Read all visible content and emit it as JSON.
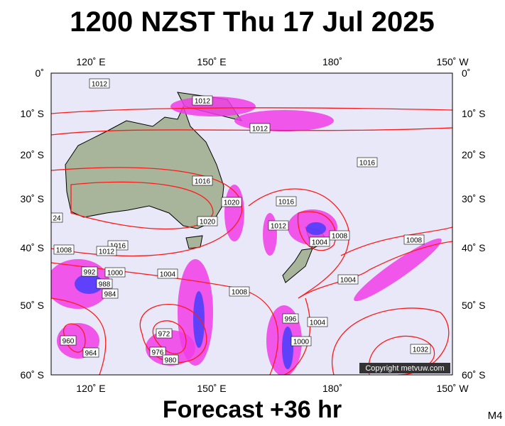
{
  "title": "1200 NZST Thu 17 Jul 2025",
  "longitude_labels": [
    "120˚ E",
    "150˚ E",
    "180˚",
    "150˚ W"
  ],
  "latitude_labels": [
    "0˚",
    "10˚ S",
    "20˚ S",
    "30˚ S",
    "40˚ S",
    "50˚ S",
    "60˚ S"
  ],
  "isobar_labels": [
    "1012",
    "1012",
    "1012",
    "1016",
    "1016",
    "1020",
    "1020",
    "1016",
    "1012",
    "1004",
    "1008",
    "1008",
    "1004",
    "1016",
    "1012",
    "1008",
    "1000",
    "1004",
    "1008",
    "996",
    "1000",
    "1004",
    "1032",
    "972",
    "976",
    "980",
    "960",
    "964",
    "24",
    "992",
    "988",
    "984"
  ],
  "copyright": "Copyright metvuw.com",
  "footer": "Forecast +36 hr",
  "code": "M4"
}
